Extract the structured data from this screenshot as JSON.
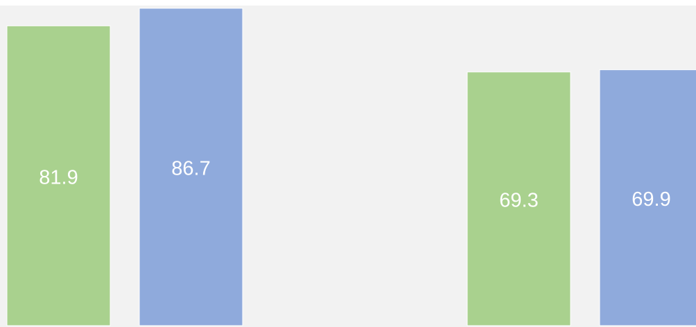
{
  "chart_data": {
    "type": "bar",
    "categories": [
      null,
      null
    ],
    "series": [
      {
        "color": "#a9d18e",
        "values": [
          81.9,
          69.3
        ]
      },
      {
        "color": "#8faadc",
        "values": [
          86.7,
          69.9
        ]
      }
    ],
    "ylim": [
      0,
      90
    ]
  }
}
